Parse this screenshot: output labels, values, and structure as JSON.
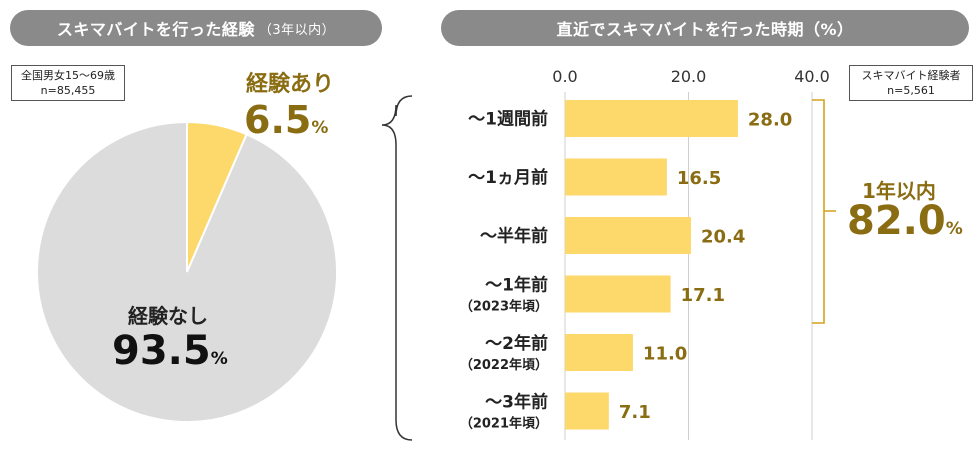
{
  "left_panel": {
    "title": "スキマバイトを行った経験",
    "title_note": "（3年以内）",
    "sample_line1": "全国男女15～69歳",
    "sample_line2": "n=85,455"
  },
  "right_panel": {
    "title": "直近でスキマバイトを行った時期（%）",
    "sample_line1": "スキマバイト経験者",
    "sample_line2": "n=5,561"
  },
  "annotation": {
    "label": "1年以内",
    "value": "82.0",
    "unit": "%"
  },
  "colors": {
    "yellow": "#fdd86a",
    "gray_slice": "#dcdcdc",
    "gold_text": "#8a6d12",
    "header_bg": "#8a8a8a"
  },
  "chart_data": [
    {
      "type": "pie",
      "title": "スキマバイトを行った経験（3年以内）",
      "unit": "%",
      "slices": [
        {
          "label": "経験あり",
          "value": 6.5,
          "display": "6.5"
        },
        {
          "label": "経験なし",
          "value": 93.5,
          "display": "93.5"
        }
      ]
    },
    {
      "type": "bar",
      "orientation": "horizontal",
      "title": "直近でスキマバイトを行った時期（%）",
      "xlim": [
        0,
        40
      ],
      "ticks": [
        "0.0",
        "20.0",
        "40.0"
      ],
      "grid": true,
      "categories": [
        {
          "label": "～1週間前",
          "sub": ""
        },
        {
          "label": "～1ヵ月前",
          "sub": ""
        },
        {
          "label": "～半年前",
          "sub": ""
        },
        {
          "label": "～1年前",
          "sub": "（2023年頃）"
        },
        {
          "label": "～2年前",
          "sub": "（2022年頃）"
        },
        {
          "label": "～3年前",
          "sub": "（2021年頃）"
        }
      ],
      "values": [
        28.0,
        16.5,
        20.4,
        17.1,
        11.0,
        7.1
      ],
      "value_labels": [
        "28.0",
        "16.5",
        "20.4",
        "17.1",
        "11.0",
        "7.1"
      ]
    }
  ]
}
